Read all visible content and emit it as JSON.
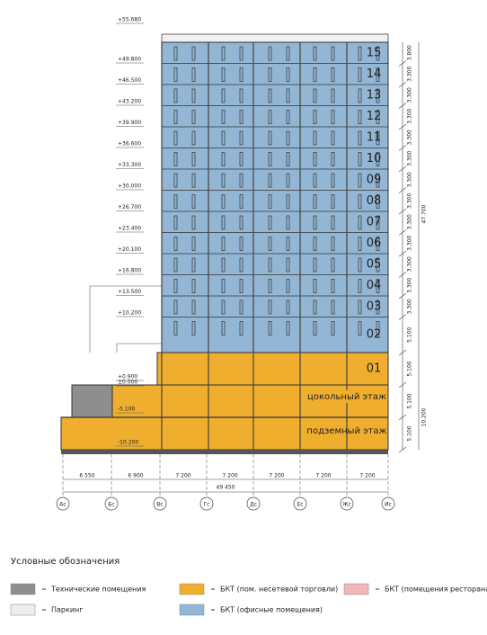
{
  "elevations": [
    "+55.680",
    "+49.800",
    "+46.500",
    "+43.200",
    "+39.900",
    "+36.600",
    "+33.300",
    "+30.000",
    "+26.700",
    "+23.400",
    "+20.100",
    "+16.800",
    "+13.500",
    "+10.200",
    "+0.900",
    "±0.000",
    "-5.100",
    "-10.200"
  ],
  "floors": [
    "15",
    "14",
    "13",
    "12",
    "11",
    "10",
    "09",
    "08",
    "07",
    "06",
    "05",
    "04",
    "03",
    "02",
    "01"
  ],
  "levels": [
    "цокольный этаж",
    "подземный этаж"
  ],
  "right_dims": [
    "3.800",
    "3.300",
    "3.300",
    "3.300",
    "3.300",
    "3.300",
    "3.300",
    "3.300",
    "3.300",
    "3.300",
    "3.300",
    "3.300",
    "3.300",
    "5.100",
    "5.100",
    "5.100",
    "5.100"
  ],
  "total_height": "47.700",
  "lower_total": "10.200",
  "span_dims": [
    "6 550",
    "6 900",
    "7 200",
    "7 200",
    "7 200",
    "7 200",
    "7 200"
  ],
  "total_width": "49 450",
  "axes": [
    "Ас",
    "Бс",
    "Вс",
    "Гс",
    "Дс",
    "Ес",
    "Жс",
    "Ис"
  ],
  "legend": {
    "title": "Условные обозначения",
    "items": [
      "Технические помещения",
      "БКТ (пом. несетевой торговли)",
      "БКТ (помещения ресторана)",
      "Паркинг",
      "БКТ (офисные помещения)"
    ]
  }
}
